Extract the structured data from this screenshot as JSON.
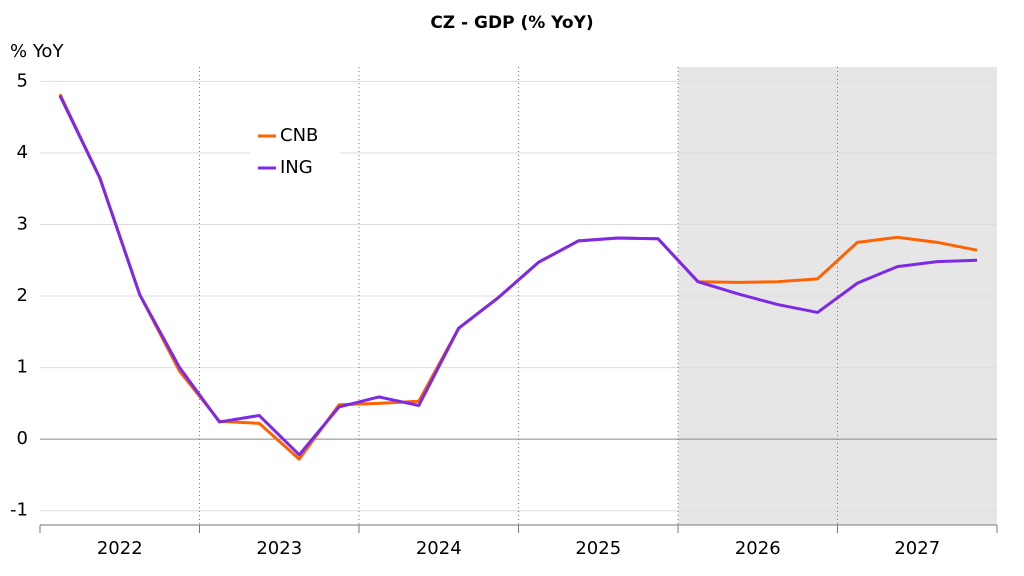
{
  "chart_data": {
    "type": "line",
    "title": "CZ - GDP (% YoY)",
    "y_label": "% YoY",
    "categories": [
      null,
      null,
      null,
      null,
      null,
      null,
      null,
      null,
      null,
      null,
      null,
      null,
      null,
      null,
      null,
      null,
      null,
      null,
      null,
      null,
      null,
      null,
      null,
      null
    ],
    "x_groups": [
      "2022",
      "2023",
      "2024",
      "2025",
      "2026",
      "2027"
    ],
    "shade_start": "2026",
    "series": [
      {
        "name": "CNB",
        "color": "#ff6200",
        "values": [
          4.82,
          3.65,
          2.02,
          0.95,
          0.25,
          0.22,
          -0.28,
          0.48,
          0.5,
          0.53,
          1.55,
          1.98,
          2.47,
          2.77,
          2.81,
          2.8,
          2.2,
          2.19,
          2.2,
          2.24,
          2.75,
          2.82,
          2.75,
          2.64
        ]
      },
      {
        "name": "ING",
        "color": "#7d2ae8",
        "values": [
          4.8,
          3.65,
          2.02,
          1.0,
          0.24,
          0.33,
          -0.22,
          0.45,
          0.59,
          0.47,
          1.55,
          1.98,
          2.47,
          2.77,
          2.81,
          2.8,
          2.2,
          2.03,
          1.88,
          1.77,
          2.18,
          2.41,
          2.48,
          2.5
        ]
      }
    ],
    "ylim": [
      -1.2,
      5.2
    ],
    "yticks": [
      -1,
      0,
      1,
      2,
      3,
      4,
      5
    ],
    "grid": true
  }
}
